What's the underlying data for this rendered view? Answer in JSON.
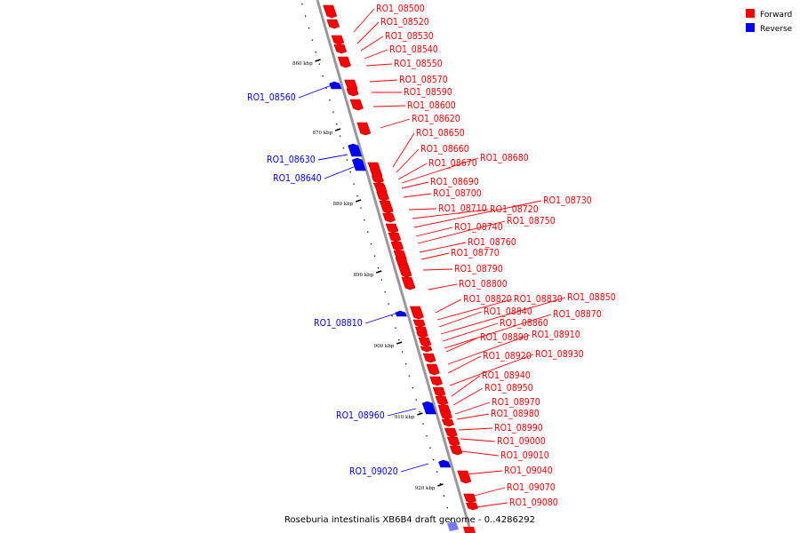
{
  "legend": {
    "forward": {
      "label": "Forward",
      "color": "#ff0000"
    },
    "reverse": {
      "label": "Reverse",
      "color": "#0000ff"
    }
  },
  "caption": "Roseburia intestinalis XB6B4 draft genome - 0..4286292",
  "scale_ticks": [
    "860 kbp",
    "870 kbp",
    "880 kbp",
    "890 kbp",
    "900 kbp",
    "910 kbp",
    "920 kbp"
  ],
  "genes": [
    {
      "name": "RO1_08500",
      "strand": "+"
    },
    {
      "name": "RO1_08520",
      "strand": "+"
    },
    {
      "name": "RO1_08530",
      "strand": "+"
    },
    {
      "name": "RO1_08540",
      "strand": "+"
    },
    {
      "name": "RO1_08550",
      "strand": "+"
    },
    {
      "name": "RO1_08560",
      "strand": "-"
    },
    {
      "name": "RO1_08570",
      "strand": "+"
    },
    {
      "name": "RO1_08590",
      "strand": "+"
    },
    {
      "name": "RO1_08600",
      "strand": "+"
    },
    {
      "name": "RO1_08620",
      "strand": "+"
    },
    {
      "name": "RO1_08630",
      "strand": "-"
    },
    {
      "name": "RO1_08640",
      "strand": "-"
    },
    {
      "name": "RO1_08650",
      "strand": "+"
    },
    {
      "name": "RO1_08660",
      "strand": "+"
    },
    {
      "name": "RO1_08670",
      "strand": "+"
    },
    {
      "name": "RO1_08680",
      "strand": "+"
    },
    {
      "name": "RO1_08690",
      "strand": "+"
    },
    {
      "name": "RO1_08700",
      "strand": "+"
    },
    {
      "name": "RO1_08710",
      "strand": "+"
    },
    {
      "name": "RO1_08720",
      "strand": "+"
    },
    {
      "name": "RO1_08730",
      "strand": "+"
    },
    {
      "name": "RO1_08740",
      "strand": "+"
    },
    {
      "name": "RO1_08750",
      "strand": "+"
    },
    {
      "name": "RO1_08760",
      "strand": "+"
    },
    {
      "name": "RO1_08770",
      "strand": "+"
    },
    {
      "name": "RO1_08790",
      "strand": "+"
    },
    {
      "name": "RO1_08800",
      "strand": "+"
    },
    {
      "name": "RO1_08810",
      "strand": "-"
    },
    {
      "name": "RO1_08820",
      "strand": "+"
    },
    {
      "name": "RO1_08830",
      "strand": "+"
    },
    {
      "name": "RO1_08840",
      "strand": "+"
    },
    {
      "name": "RO1_08850",
      "strand": "+"
    },
    {
      "name": "RO1_08860",
      "strand": "+"
    },
    {
      "name": "RO1_08870",
      "strand": "+"
    },
    {
      "name": "RO1_08890",
      "strand": "+"
    },
    {
      "name": "RO1_08910",
      "strand": "+"
    },
    {
      "name": "RO1_08920",
      "strand": "+"
    },
    {
      "name": "RO1_08930",
      "strand": "+"
    },
    {
      "name": "RO1_08940",
      "strand": "+"
    },
    {
      "name": "RO1_08950",
      "strand": "+"
    },
    {
      "name": "RO1_08960",
      "strand": "-"
    },
    {
      "name": "RO1_08970",
      "strand": "+"
    },
    {
      "name": "RO1_08980",
      "strand": "+"
    },
    {
      "name": "RO1_08990",
      "strand": "+"
    },
    {
      "name": "RO1_09000",
      "strand": "+"
    },
    {
      "name": "RO1_09010",
      "strand": "+"
    },
    {
      "name": "RO1_09020",
      "strand": "-"
    },
    {
      "name": "RO1_09040",
      "strand": "+"
    },
    {
      "name": "RO1_09070",
      "strand": "+"
    },
    {
      "name": "RO1_09080",
      "strand": "+"
    }
  ]
}
